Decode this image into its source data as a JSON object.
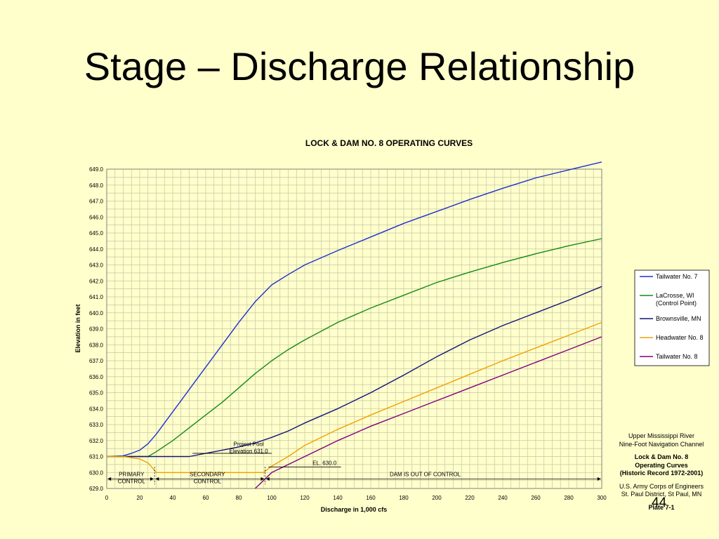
{
  "slide": {
    "title": "Stage – Discharge Relationship",
    "slide_number": "44"
  },
  "plate_info": {
    "river": "Upper Mississippi River",
    "channel": "Nine-Foot Navigation Channel",
    "lock": "Lock & Dam No. 8",
    "curves": "Operating Curves",
    "record": "(Historic Record 1972-2001)",
    "agency": "U.S. Army Corps of Engineers",
    "district": "St. Paul  District,  St Paul, MN",
    "plate": "Plate 7-1"
  },
  "colors": {
    "background": "#ffffcc",
    "plot_background": "#ffffcc",
    "grid": "#c6c6a6",
    "tailwater_7": "#1f2fd0",
    "lacrosse": "#168a16",
    "brownsville": "#13137a",
    "headwater_8": "#f0a000",
    "tailwater_8": "#800080"
  },
  "chart_data": {
    "type": "line",
    "title": "LOCK & DAM NO. 8 OPERATING CURVES",
    "xlabel": "Discharge in 1,000 cfs",
    "ylabel": "Elevation in feet",
    "xlim": [
      0,
      300
    ],
    "ylim": [
      629,
      649
    ],
    "x_ticks": [
      "0",
      "20",
      "40",
      "60",
      "80",
      "100",
      "120",
      "140",
      "160",
      "180",
      "200",
      "220",
      "240",
      "260",
      "280",
      "300"
    ],
    "y_ticks": [
      "629.0",
      "630.0",
      "631.0",
      "632.0",
      "633.0",
      "634.0",
      "635.0",
      "636.0",
      "637.0",
      "638.0",
      "639.0",
      "640.0",
      "641.0",
      "642.0",
      "643.0",
      "644.0",
      "645.0",
      "646.0",
      "647.0",
      "648.0",
      "649.0"
    ],
    "grid": true,
    "legend_position": "right",
    "series": [
      {
        "name": "Tailwater No. 7",
        "color": "#1f2fd0",
        "points": [
          [
            0,
            631.0
          ],
          [
            10,
            631.05
          ],
          [
            15,
            631.2
          ],
          [
            20,
            631.4
          ],
          [
            25,
            631.8
          ],
          [
            30,
            632.4
          ],
          [
            35,
            633.1
          ],
          [
            40,
            633.8
          ],
          [
            45,
            634.5
          ],
          [
            50,
            635.2
          ],
          [
            60,
            636.6
          ],
          [
            70,
            638.0
          ],
          [
            80,
            639.4
          ],
          [
            90,
            640.7
          ],
          [
            100,
            641.75
          ],
          [
            110,
            642.4
          ],
          [
            120,
            643.0
          ],
          [
            140,
            643.9
          ],
          [
            160,
            644.75
          ],
          [
            180,
            645.6
          ],
          [
            200,
            646.35
          ],
          [
            220,
            647.1
          ],
          [
            240,
            647.8
          ],
          [
            260,
            648.45
          ],
          [
            280,
            648.95
          ],
          [
            300,
            649.45
          ]
        ]
      },
      {
        "name": "LaCrosse, WI\n(Control Point)",
        "color": "#168a16",
        "points": [
          [
            0,
            631.0
          ],
          [
            20,
            631.0
          ],
          [
            25,
            631.0
          ],
          [
            30,
            631.3
          ],
          [
            40,
            632.0
          ],
          [
            50,
            632.8
          ],
          [
            60,
            633.6
          ],
          [
            70,
            634.4
          ],
          [
            80,
            635.3
          ],
          [
            90,
            636.2
          ],
          [
            100,
            637.0
          ],
          [
            110,
            637.7
          ],
          [
            120,
            638.3
          ],
          [
            140,
            639.4
          ],
          [
            160,
            640.3
          ],
          [
            180,
            641.1
          ],
          [
            200,
            641.9
          ],
          [
            220,
            642.55
          ],
          [
            240,
            643.15
          ],
          [
            260,
            643.7
          ],
          [
            280,
            644.2
          ],
          [
            300,
            644.65
          ]
        ]
      },
      {
        "name": "Brownsville, MN",
        "color": "#13137a",
        "points": [
          [
            0,
            631.0
          ],
          [
            30,
            631.0
          ],
          [
            50,
            631.0
          ],
          [
            60,
            631.2
          ],
          [
            70,
            631.4
          ],
          [
            80,
            631.6
          ],
          [
            90,
            631.85
          ],
          [
            100,
            632.2
          ],
          [
            110,
            632.6
          ],
          [
            120,
            633.1
          ],
          [
            140,
            634.0
          ],
          [
            160,
            635.0
          ],
          [
            180,
            636.1
          ],
          [
            200,
            637.25
          ],
          [
            220,
            638.3
          ],
          [
            240,
            639.2
          ],
          [
            260,
            640.0
          ],
          [
            280,
            640.8
          ],
          [
            300,
            641.65
          ]
        ]
      },
      {
        "name": "Headwater No. 8",
        "color": "#f0a000",
        "points": [
          [
            0,
            631.0
          ],
          [
            10,
            631.0
          ],
          [
            20,
            630.85
          ],
          [
            25,
            630.6
          ],
          [
            28,
            630.25
          ],
          [
            30,
            630.0
          ],
          [
            50,
            630.0
          ],
          [
            70,
            630.0
          ],
          [
            95,
            630.0
          ],
          [
            100,
            630.4
          ],
          [
            110,
            631.0
          ],
          [
            120,
            631.7
          ],
          [
            140,
            632.7
          ],
          [
            160,
            633.6
          ],
          [
            180,
            634.45
          ],
          [
            200,
            635.3
          ],
          [
            220,
            636.15
          ],
          [
            240,
            637.0
          ],
          [
            260,
            637.8
          ],
          [
            280,
            638.6
          ],
          [
            300,
            639.4
          ]
        ]
      },
      {
        "name": "Tailwater No. 8",
        "color": "#800080",
        "points": [
          [
            90,
            629.0
          ],
          [
            95,
            629.5
          ],
          [
            100,
            630.0
          ],
          [
            120,
            631.0
          ],
          [
            140,
            632.0
          ],
          [
            160,
            632.9
          ],
          [
            180,
            633.7
          ],
          [
            200,
            634.5
          ],
          [
            220,
            635.3
          ],
          [
            240,
            636.1
          ],
          [
            260,
            636.9
          ],
          [
            280,
            637.7
          ],
          [
            300,
            638.5
          ]
        ]
      }
    ],
    "annotations": {
      "project_pool": "Project Pool\nElevation 631.0",
      "el_630": "EL. 630.0",
      "primary_control": "PRIMARY\nCONTROL",
      "secondary_control": "SECONDARY\nCONTROL",
      "dam_out": "DAM  IS  OUT  OF  CONTROL"
    }
  }
}
